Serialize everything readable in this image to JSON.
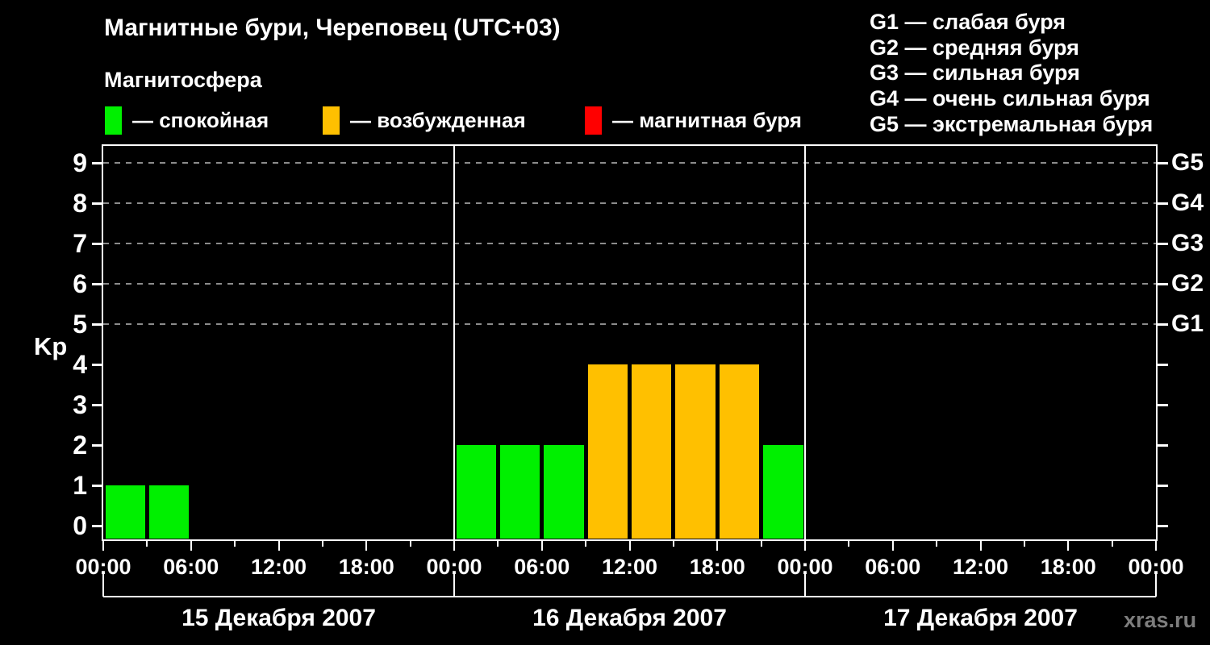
{
  "title": "Магнитные бури, Череповец (UTC+03)",
  "subtitle": "Магнитосфера",
  "watermark": "xras.ru",
  "colors": {
    "background": "#000000",
    "axis": "#ffffff",
    "grid": "#8c8c8c",
    "quiet": "#00f000",
    "excited": "#ffc000",
    "storm": "#ff0000",
    "watermark": "#7d7d7d"
  },
  "legend": {
    "items": [
      {
        "state": "quiet",
        "label": "— спокойная",
        "color": "#00f000"
      },
      {
        "state": "excited",
        "label": "— возбужденная",
        "color": "#ffc000"
      },
      {
        "state": "storm",
        "label": "— магнитная буря",
        "color": "#ff0000"
      }
    ]
  },
  "storm_scale_legend": [
    "G1 — слабая буря",
    "G2 — средняя буря",
    "G3 — сильная буря",
    "G4 — очень сильная буря",
    "G5 — экстремальная буря"
  ],
  "chart_data": {
    "type": "bar",
    "title": "Магнитные бури, Череповец (UTC+03)",
    "ylabel": "Kp",
    "ylim": [
      0,
      9.4
    ],
    "y_ticks": [
      0,
      1,
      2,
      3,
      4,
      5,
      6,
      7,
      8,
      9
    ],
    "grid": "dashed horizontal gridlines at Kp 5,6,7,8,9 only",
    "hours_per_bar": 3,
    "x_tick_labels": [
      "00:00",
      "06:00",
      "12:00",
      "18:00",
      "00:00",
      "06:00",
      "12:00",
      "18:00",
      "00:00",
      "06:00",
      "12:00",
      "18:00",
      "00:00"
    ],
    "right_axis": [
      {
        "kp": 5,
        "label": "G1"
      },
      {
        "kp": 6,
        "label": "G2"
      },
      {
        "kp": 7,
        "label": "G3"
      },
      {
        "kp": 8,
        "label": "G4"
      },
      {
        "kp": 9,
        "label": "G5"
      }
    ],
    "days": [
      {
        "date": "15 Декабря 2007",
        "kp": [
          1,
          1,
          null,
          null,
          null,
          null,
          null,
          null
        ]
      },
      {
        "date": "16 Декабря 2007",
        "kp": [
          2,
          2,
          2,
          4,
          4,
          4,
          4,
          2
        ]
      },
      {
        "date": "17 Декабря 2007",
        "kp": [
          null,
          null,
          null,
          null,
          null,
          null,
          null,
          null
        ]
      }
    ],
    "color_rules": {
      "quiet": "Kp <= 3",
      "excited": "Kp = 4",
      "storm": "Kp >= 5"
    }
  }
}
